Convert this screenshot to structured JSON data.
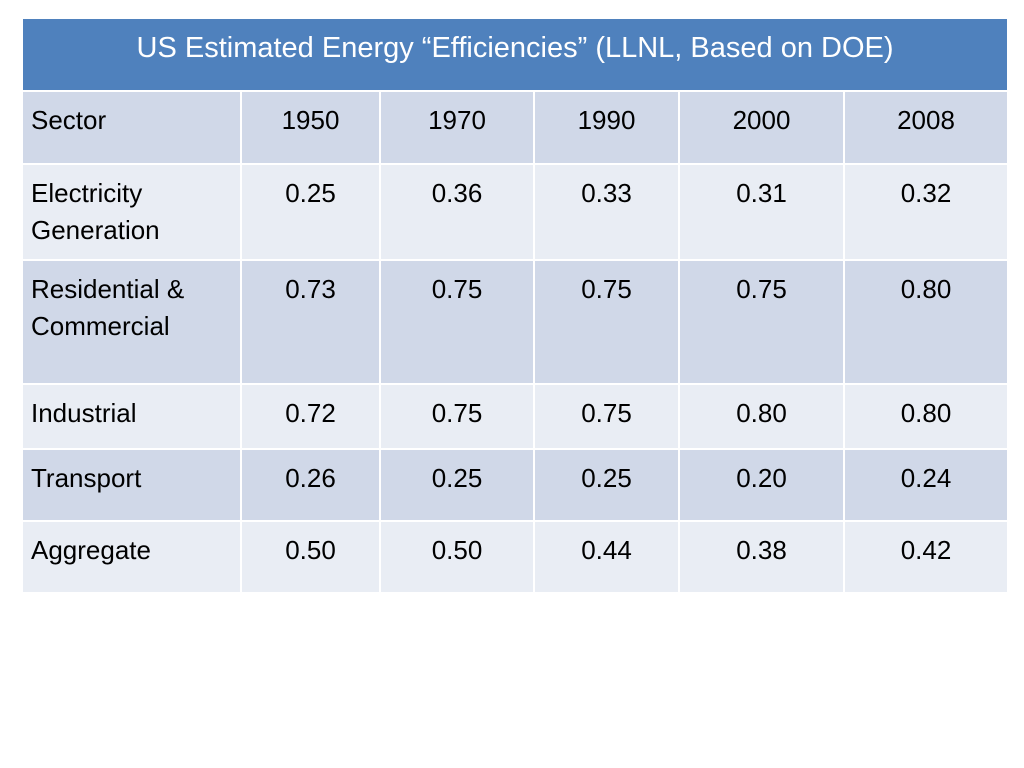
{
  "title": "US Estimated Energy “Efficiencies” (LLNL, Based on DOE)",
  "header": {
    "label": "Sector",
    "years": [
      "1950",
      "1970",
      "1990",
      "2000",
      "2008"
    ]
  },
  "rows": [
    {
      "sector": [
        "Electricity",
        "Generation"
      ],
      "values": [
        "0.25",
        "0.36",
        "0.33",
        "0.31",
        "0.32"
      ]
    },
    {
      "sector": [
        "Residential &",
        "Commercial"
      ],
      "values": [
        "0.73",
        "0.75",
        "0.75",
        "0.75",
        "0.80"
      ]
    },
    {
      "sector": [
        "Industrial"
      ],
      "values": [
        "0.72",
        "0.75",
        "0.75",
        "0.80",
        "0.80"
      ]
    },
    {
      "sector": [
        "Transport"
      ],
      "values": [
        "0.26",
        "0.25",
        "0.25",
        "0.20",
        "0.24"
      ]
    },
    {
      "sector": [
        "Aggregate"
      ],
      "values": [
        "0.50",
        "0.50",
        "0.44",
        "0.38",
        "0.42"
      ]
    }
  ],
  "colors": {
    "title_background": "#4f81bd",
    "row_dark": "#d0d8e8",
    "row_light": "#e9edf4"
  }
}
